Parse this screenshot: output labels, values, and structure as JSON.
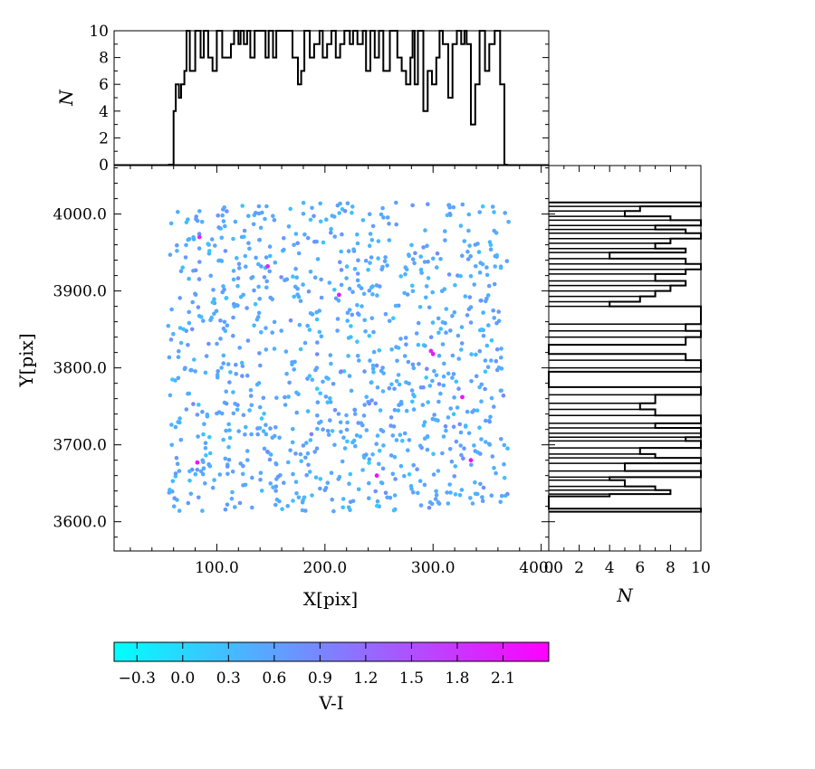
{
  "chart_data": [
    {
      "id": "scatter",
      "type": "scatter",
      "xlabel": "X[pix]",
      "ylabel": "Y[pix]",
      "xlim": [
        5,
        407
      ],
      "ylim": [
        3562,
        4063
      ],
      "xticks": [
        "100.0",
        "200.0",
        "300.0",
        "400.0"
      ],
      "yticks": [
        "3600.0",
        "3700.0",
        "3800.0",
        "3900.0",
        "4000.0"
      ],
      "color_by": "V-I",
      "color_range": [
        -0.45,
        2.4
      ],
      "colormap": [
        "#00ffff",
        "#ff00ff"
      ],
      "point_count": 1000,
      "x_range_of_points": [
        55,
        370
      ],
      "y_range_of_points": [
        3613,
        4015
      ],
      "highlighted_points": [
        {
          "x": 213,
          "y": 3895,
          "c": 2.1
        },
        {
          "x": 298,
          "y": 3822,
          "c": 2.0
        },
        {
          "x": 300,
          "y": 3818,
          "c": 2.1
        },
        {
          "x": 327,
          "y": 3762,
          "c": 2.2
        },
        {
          "x": 82,
          "y": 3677,
          "c": 2.3
        },
        {
          "x": 248,
          "y": 3660,
          "c": 2.3
        },
        {
          "x": 335,
          "y": 3680,
          "c": 2.2
        },
        {
          "x": 147,
          "y": 3932,
          "c": 2.0
        },
        {
          "x": 84,
          "y": 3970,
          "c": 1.9
        }
      ]
    },
    {
      "id": "top-hist",
      "type": "bar",
      "ylabel": "N",
      "ylim": [
        0,
        10
      ],
      "yticks": [
        "0",
        "2",
        "4",
        "6",
        "8",
        "10"
      ],
      "bins": [
        [
          55,
          60,
          0
        ],
        [
          60,
          62,
          4
        ],
        [
          62,
          65,
          6
        ],
        [
          65,
          67,
          5
        ],
        [
          67,
          70,
          6
        ],
        [
          70,
          72,
          7
        ],
        [
          72,
          75,
          10
        ],
        [
          75,
          80,
          7
        ],
        [
          80,
          85,
          10
        ],
        [
          85,
          88,
          8
        ],
        [
          88,
          92,
          10
        ],
        [
          92,
          96,
          8
        ],
        [
          96,
          100,
          7
        ],
        [
          100,
          105,
          10
        ],
        [
          105,
          108,
          8
        ],
        [
          108,
          113,
          8
        ],
        [
          113,
          116,
          9
        ],
        [
          116,
          120,
          10
        ],
        [
          120,
          122,
          9
        ],
        [
          122,
          125,
          10
        ],
        [
          125,
          128,
          9
        ],
        [
          128,
          131,
          10
        ],
        [
          131,
          135,
          8
        ],
        [
          135,
          145,
          10
        ],
        [
          145,
          148,
          8
        ],
        [
          148,
          152,
          10
        ],
        [
          152,
          155,
          8
        ],
        [
          155,
          170,
          10
        ],
        [
          170,
          175,
          8
        ],
        [
          175,
          178,
          6
        ],
        [
          178,
          181,
          7
        ],
        [
          181,
          186,
          10
        ],
        [
          186,
          190,
          8
        ],
        [
          190,
          195,
          9
        ],
        [
          195,
          198,
          10
        ],
        [
          198,
          202,
          8
        ],
        [
          202,
          206,
          9
        ],
        [
          206,
          210,
          10
        ],
        [
          210,
          214,
          8
        ],
        [
          214,
          218,
          9
        ],
        [
          218,
          223,
          10
        ],
        [
          223,
          226,
          9
        ],
        [
          226,
          230,
          10
        ],
        [
          230,
          235,
          9
        ],
        [
          235,
          238,
          10
        ],
        [
          238,
          242,
          7
        ],
        [
          242,
          246,
          10
        ],
        [
          246,
          250,
          8
        ],
        [
          250,
          254,
          10
        ],
        [
          254,
          260,
          7
        ],
        [
          260,
          267,
          10
        ],
        [
          267,
          271,
          8
        ],
        [
          271,
          275,
          7
        ],
        [
          275,
          279,
          6
        ],
        [
          279,
          281,
          8
        ],
        [
          281,
          283,
          10
        ],
        [
          283,
          286,
          6
        ],
        [
          286,
          291,
          10
        ],
        [
          291,
          295,
          4
        ],
        [
          295,
          299,
          7
        ],
        [
          299,
          303,
          6
        ],
        [
          303,
          306,
          8
        ],
        [
          306,
          309,
          10
        ],
        [
          309,
          314,
          9
        ],
        [
          314,
          318,
          5
        ],
        [
          318,
          322,
          9
        ],
        [
          322,
          326,
          10
        ],
        [
          326,
          329,
          9
        ],
        [
          329,
          331,
          10
        ],
        [
          331,
          335,
          9
        ],
        [
          335,
          339,
          3
        ],
        [
          339,
          343,
          6
        ],
        [
          343,
          348,
          10
        ],
        [
          348,
          352,
          7
        ],
        [
          352,
          357,
          9
        ],
        [
          357,
          362,
          10
        ],
        [
          362,
          366,
          6
        ],
        [
          366,
          369,
          0
        ]
      ]
    },
    {
      "id": "right-hist",
      "type": "bar",
      "xlabel": "N",
      "xlim": [
        0,
        10
      ],
      "xticks": [
        "0",
        "2",
        "4",
        "6",
        "8",
        "10"
      ],
      "bins": [
        [
          3613,
          3617,
          10
        ],
        [
          3617,
          3633,
          0
        ],
        [
          3633,
          3636,
          4
        ],
        [
          3636,
          3641,
          8
        ],
        [
          3641,
          3646,
          7
        ],
        [
          3646,
          3654,
          5
        ],
        [
          3654,
          3658,
          4
        ],
        [
          3658,
          3666,
          10
        ],
        [
          3666,
          3676,
          5
        ],
        [
          3676,
          3683,
          10
        ],
        [
          3683,
          3688,
          7
        ],
        [
          3688,
          3696,
          6
        ],
        [
          3696,
          3705,
          10
        ],
        [
          3705,
          3710,
          9
        ],
        [
          3710,
          3715,
          10
        ],
        [
          3715,
          3722,
          10
        ],
        [
          3722,
          3728,
          7
        ],
        [
          3728,
          3738,
          10
        ],
        [
          3738,
          3746,
          7
        ],
        [
          3746,
          3754,
          6
        ],
        [
          3754,
          3765,
          7
        ],
        [
          3765,
          3775,
          10
        ],
        [
          3775,
          3795,
          0
        ],
        [
          3795,
          3800,
          10
        ],
        [
          3800,
          3810,
          10
        ],
        [
          3810,
          3818,
          9
        ],
        [
          3818,
          3830,
          0
        ],
        [
          3830,
          3840,
          9
        ],
        [
          3840,
          3848,
          10
        ],
        [
          3848,
          3857,
          9
        ],
        [
          3857,
          3880,
          10
        ],
        [
          3880,
          3886,
          4
        ],
        [
          3886,
          3893,
          6
        ],
        [
          3893,
          3900,
          7
        ],
        [
          3900,
          3907,
          8
        ],
        [
          3907,
          3913,
          9
        ],
        [
          3913,
          3922,
          7
        ],
        [
          3922,
          3928,
          9
        ],
        [
          3928,
          3935,
          10
        ],
        [
          3935,
          3942,
          9
        ],
        [
          3942,
          3950,
          4
        ],
        [
          3950,
          3955,
          9
        ],
        [
          3955,
          3962,
          7
        ],
        [
          3962,
          3968,
          8
        ],
        [
          3968,
          3975,
          10
        ],
        [
          3975,
          3980,
          9
        ],
        [
          3980,
          3985,
          7
        ],
        [
          3985,
          3992,
          10
        ],
        [
          3992,
          3997,
          8
        ],
        [
          3997,
          4004,
          5
        ],
        [
          4004,
          4010,
          6
        ],
        [
          4010,
          4015,
          10
        ]
      ]
    },
    {
      "id": "colorbar",
      "type": "colorbar",
      "label": "V-I",
      "range": [
        -0.45,
        2.4
      ],
      "ticks": [
        "−0.3",
        "0.0",
        "0.3",
        "0.6",
        "0.9",
        "1.2",
        "1.5",
        "1.8",
        "2.1"
      ],
      "tick_values": [
        -0.3,
        0.0,
        0.3,
        0.6,
        0.9,
        1.2,
        1.5,
        1.8,
        2.1
      ]
    }
  ]
}
